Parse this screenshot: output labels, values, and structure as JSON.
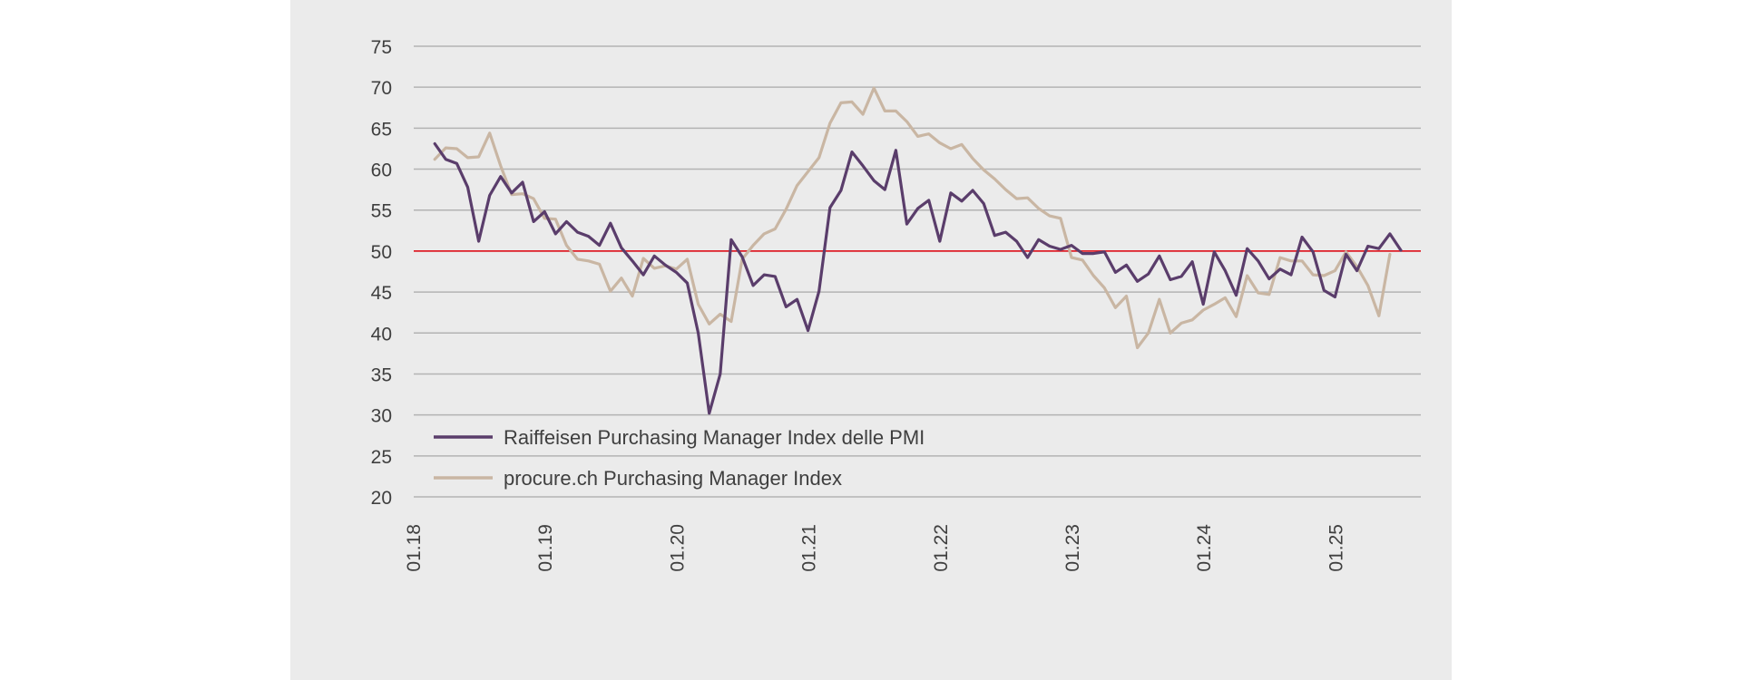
{
  "chart_data": {
    "type": "line",
    "title": "",
    "xlabel": "",
    "ylabel": "",
    "ylim": [
      20,
      75
    ],
    "y_ticks": [
      "75",
      "70",
      "65",
      "60",
      "55",
      "50",
      "45",
      "40",
      "35",
      "30",
      "25",
      "20"
    ],
    "x_ticks": [
      "01.18",
      "01.19",
      "01.20",
      "01.21",
      "01.22",
      "01.23",
      "01.24",
      "01.25"
    ],
    "x_range": [
      "2018-01",
      "2025-08"
    ],
    "grid": "horizontal",
    "reference_line": {
      "value": 50,
      "color": "#e0202a"
    },
    "legend": {
      "placement": "bottom-left"
    },
    "series": [
      {
        "name": "Raiffeisen Purchasing Manager Index delle PMI",
        "color": "#5a3d6b",
        "start": "2018-03",
        "values": [
          63.1,
          61.2,
          60.7,
          57.8,
          51.2,
          56.8,
          59.1,
          57.1,
          58.4,
          53.6,
          54.8,
          52.1,
          53.6,
          52.3,
          51.8,
          50.7,
          53.4,
          50.4,
          48.8,
          47.1,
          49.4,
          48.3,
          47.4,
          46.1,
          40.0,
          30.2,
          35.0,
          51.4,
          49.3,
          45.8,
          47.1,
          46.9,
          43.2,
          44.1,
          40.3,
          45.1,
          55.3,
          57.4,
          62.1,
          60.4,
          58.6,
          57.5,
          62.3,
          53.3,
          55.2,
          56.2,
          51.2,
          57.1,
          56.1,
          57.4,
          55.8,
          51.9,
          52.3,
          51.2,
          49.2,
          51.4,
          50.6,
          50.2,
          50.7,
          49.7,
          49.7,
          49.9,
          47.4,
          48.3,
          46.3,
          47.2,
          49.4,
          46.5,
          46.9,
          48.7,
          43.5,
          49.9,
          47.6,
          44.6,
          50.3,
          48.8,
          46.6,
          47.8,
          47.1,
          51.7,
          49.9,
          45.2,
          44.4,
          49.6,
          47.6,
          50.6,
          50.3,
          52.1,
          50.1
        ]
      },
      {
        "name": "procure.ch Purchasing Manager Index",
        "color": "#c9b6a3",
        "start": "2018-03",
        "values": [
          61.2,
          62.6,
          62.5,
          61.4,
          61.5,
          64.4,
          60.4,
          56.9,
          57.0,
          56.4,
          54.0,
          53.9,
          50.7,
          49.0,
          48.8,
          48.4,
          45.1,
          46.7,
          44.5,
          49.1,
          47.9,
          48.2,
          47.8,
          49.0,
          43.5,
          41.1,
          42.3,
          41.4,
          49.0,
          50.7,
          52.1,
          52.7,
          55.1,
          58.0,
          59.7,
          61.4,
          65.6,
          68.1,
          68.2,
          66.7,
          69.9,
          67.1,
          67.1,
          65.8,
          64.0,
          64.3,
          63.2,
          62.5,
          63.0,
          61.3,
          59.9,
          58.8,
          57.5,
          56.4,
          56.5,
          55.2,
          54.3,
          54.0,
          49.2,
          48.9,
          47.0,
          45.5,
          43.1,
          44.5,
          38.2,
          40.0,
          44.1,
          40.0,
          41.2,
          41.6,
          42.8,
          43.5,
          44.3,
          42.0,
          47.0,
          44.9,
          44.7,
          49.2,
          48.8,
          48.8,
          47.1,
          47.0,
          47.6,
          49.9,
          48.1,
          45.8,
          42.1,
          49.6
        ]
      }
    ]
  }
}
